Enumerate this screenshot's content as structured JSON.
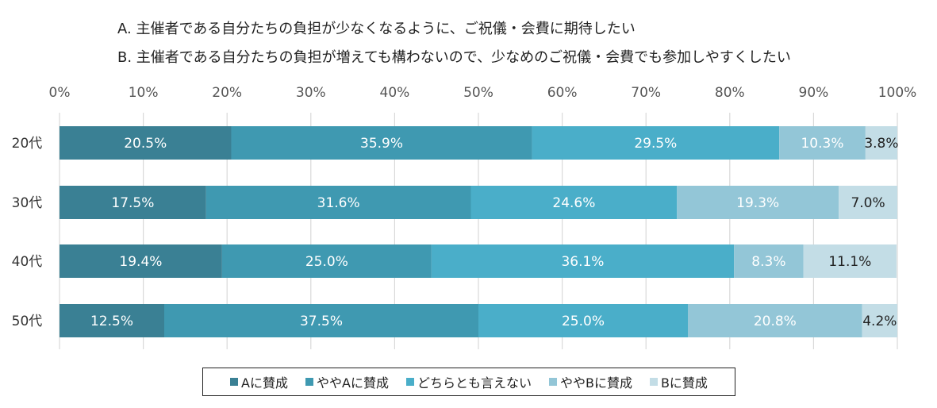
{
  "chart_data": {
    "type": "bar",
    "orientation": "horizontal",
    "stacked": true,
    "notes": [
      "A. 主催者である自分たちの負担が少なくなるように、ご祝儀・会費に期待したい",
      "B. 主催者である自分たちの負担が増えても構わないので、少なめのご祝儀・会費でも参加しやすくしたい"
    ],
    "categories": [
      "20代",
      "30代",
      "40代",
      "50代"
    ],
    "xlim": [
      0,
      100
    ],
    "x_ticks": [
      "0%",
      "10%",
      "20%",
      "30%",
      "40%",
      "50%",
      "60%",
      "70%",
      "80%",
      "90%",
      "100%"
    ],
    "grid": true,
    "legend_position": "bottom",
    "series": [
      {
        "name": "Aに賛成",
        "color": "#3a8094",
        "values": [
          20.5,
          17.5,
          19.4,
          12.5
        ],
        "labels": [
          "20.5%",
          "17.5%",
          "19.4%",
          "12.5%"
        ]
      },
      {
        "name": "ややAに賛成",
        "color": "#3f99b1",
        "values": [
          35.9,
          31.6,
          25.0,
          37.5
        ],
        "labels": [
          "35.9%",
          "31.6%",
          "25.0%",
          "37.5%"
        ]
      },
      {
        "name": "どちらとも言えない",
        "color": "#4aaec9",
        "values": [
          29.5,
          24.6,
          36.1,
          25.0
        ],
        "labels": [
          "29.5%",
          "24.6%",
          "36.1%",
          "25.0%"
        ]
      },
      {
        "name": "ややBに賛成",
        "color": "#93c6d7",
        "values": [
          10.3,
          19.3,
          8.3,
          20.8
        ],
        "labels": [
          "10.3%",
          "19.3%",
          "8.3%",
          "20.8%"
        ]
      },
      {
        "name": "Bに賛成",
        "color": "#c3dde6",
        "values": [
          3.8,
          7.0,
          11.1,
          4.2
        ],
        "labels": [
          "3.8%",
          "7.0%",
          "11.1%",
          "4.2%"
        ]
      }
    ]
  }
}
